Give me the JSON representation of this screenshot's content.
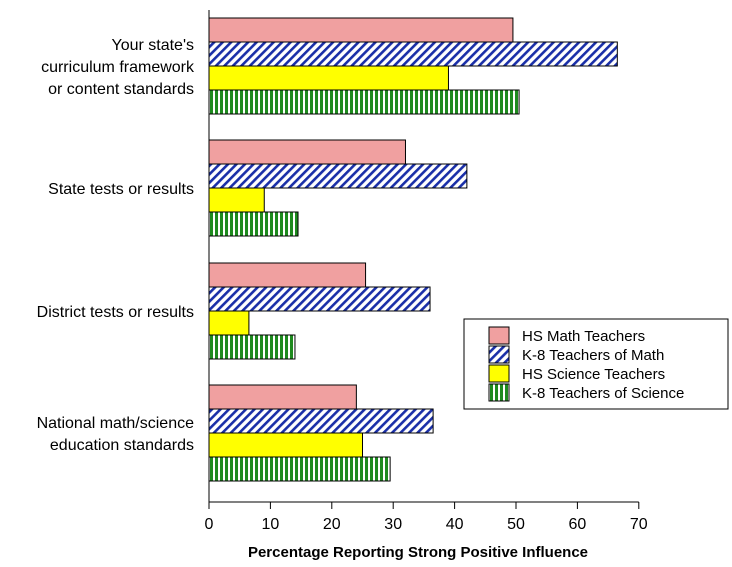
{
  "chart_data": {
    "type": "bar",
    "orientation": "horizontal",
    "categories": [
      [
        "Your state's",
        "curriculum framework",
        "or content standards"
      ],
      [
        "State tests or results"
      ],
      [
        "District tests or results"
      ],
      [
        "National math/science",
        "education standards"
      ]
    ],
    "series": [
      {
        "name": "HS Math Teachers",
        "color": "#f0a0a0",
        "pattern": "solid",
        "values": [
          49.5,
          32,
          25.5,
          24
        ]
      },
      {
        "name": "K-8 Teachers of Math",
        "color": "#1a2fa8",
        "pattern": "diagonal-hatch",
        "values": [
          66.5,
          42,
          36,
          36.5
        ]
      },
      {
        "name": "HS Science Teachers",
        "color": "#ffff00",
        "pattern": "solid",
        "values": [
          39,
          9,
          6.5,
          25
        ]
      },
      {
        "name": "K-8 Teachers of Science",
        "color": "#1e8a1e",
        "pattern": "vertical-stripes",
        "values": [
          50.5,
          14.5,
          14,
          29.5
        ]
      }
    ],
    "xlabel": "Percentage Reporting Strong Positive Influence",
    "ylabel": "",
    "title": "",
    "xlim": [
      0,
      70
    ],
    "xticks": [
      0,
      10,
      20,
      30,
      40,
      50,
      60,
      70
    ],
    "grid": false,
    "legend": "right"
  }
}
